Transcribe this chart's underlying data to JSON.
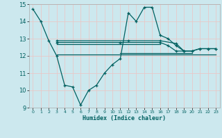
{
  "bg_color": "#cce8ee",
  "grid_color": "#e8c8c8",
  "line_color": "#006060",
  "xlabel": "Humidex (Indice chaleur)",
  "xlim": [
    -0.5,
    23.5
  ],
  "ylim": [
    9,
    15
  ],
  "yticks": [
    9,
    10,
    11,
    12,
    13,
    14,
    15
  ],
  "xticks": [
    0,
    1,
    2,
    3,
    4,
    5,
    6,
    7,
    8,
    9,
    10,
    11,
    12,
    13,
    14,
    15,
    16,
    17,
    18,
    19,
    20,
    21,
    22,
    23
  ],
  "line1_x": [
    0,
    1,
    2,
    3,
    4,
    5,
    6,
    7,
    8,
    9,
    10,
    11,
    12,
    13,
    14,
    15,
    16,
    17,
    18,
    19,
    20,
    21,
    22,
    23
  ],
  "line1_y": [
    14.72,
    14.0,
    12.88,
    12.0,
    10.3,
    10.2,
    9.15,
    10.0,
    10.3,
    11.0,
    11.5,
    11.85,
    14.5,
    14.0,
    14.82,
    14.82,
    13.2,
    13.0,
    12.6,
    12.28,
    12.28,
    12.42,
    12.42,
    12.42
  ],
  "line2_x": [
    3,
    12,
    16,
    18,
    19,
    20,
    21,
    22,
    23
  ],
  "line2_y": [
    12.88,
    12.88,
    12.88,
    12.72,
    12.28,
    12.28,
    12.42,
    12.42,
    12.42
  ],
  "line3_x": [
    3,
    11,
    16,
    17,
    18,
    19
  ],
  "line3_y": [
    12.78,
    12.78,
    12.78,
    12.6,
    12.28,
    12.28
  ],
  "line4_x": [
    3,
    10,
    16
  ],
  "line4_y": [
    12.68,
    12.68,
    12.68
  ],
  "line5_x": [
    11,
    15,
    18,
    19,
    20
  ],
  "line5_y": [
    12.18,
    12.18,
    12.18,
    12.18,
    12.18
  ],
  "line6_x": [
    3,
    10,
    15,
    18,
    23
  ],
  "line6_y": [
    12.08,
    12.08,
    12.08,
    12.08,
    12.08
  ]
}
